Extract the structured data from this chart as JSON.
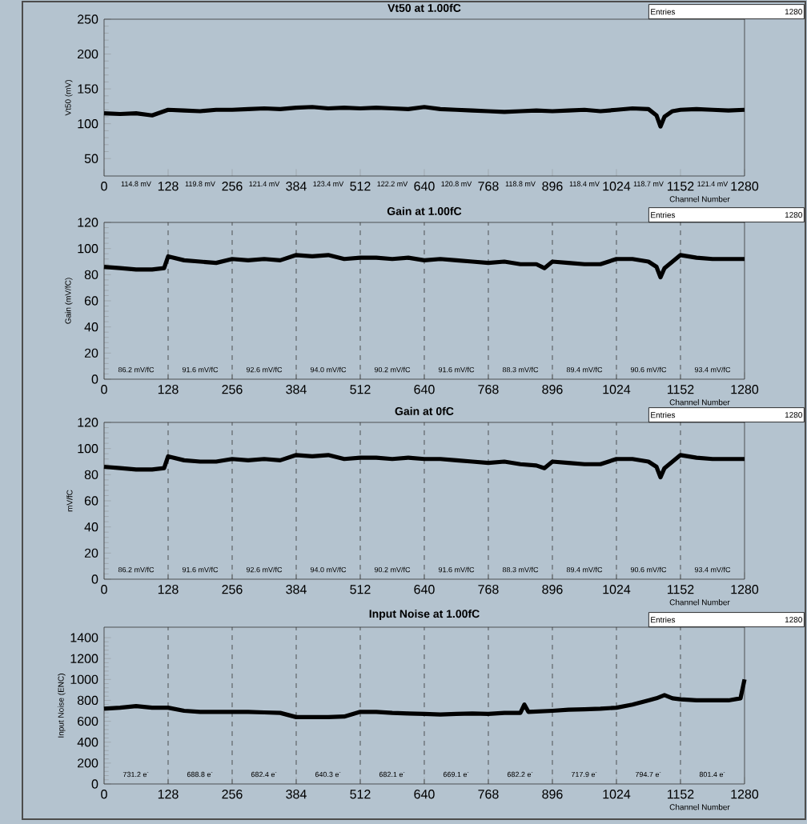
{
  "chart_data": [
    {
      "type": "line",
      "title": "Vt50 at 1.00fC",
      "xlabel": "Channel Number",
      "ylabel": "Vt50 (mV)",
      "color": "#000000",
      "marker": "none",
      "line_style": "solid",
      "xlim": [
        0,
        1280
      ],
      "xticks": [
        0,
        128,
        256,
        384,
        512,
        640,
        768,
        896,
        1024,
        1152,
        1280
      ],
      "ylim": [
        25,
        250
      ],
      "yticks": [
        50,
        100,
        150,
        200,
        250
      ],
      "x": [
        0,
        32,
        64,
        96,
        128,
        160,
        192,
        224,
        256,
        288,
        320,
        352,
        384,
        416,
        448,
        480,
        512,
        544,
        576,
        608,
        640,
        672,
        704,
        736,
        768,
        800,
        832,
        864,
        896,
        928,
        960,
        992,
        1024,
        1056,
        1088,
        1104,
        1112,
        1120,
        1136,
        1152,
        1184,
        1216,
        1248,
        1280
      ],
      "values": [
        115,
        114,
        115,
        112,
        120,
        119,
        118,
        120,
        120,
        121,
        122,
        121,
        123,
        124,
        122,
        123,
        122,
        123,
        122,
        121,
        124,
        121,
        120,
        119,
        118,
        117,
        118,
        119,
        118,
        119,
        120,
        118,
        120,
        122,
        121,
        112,
        96,
        110,
        118,
        120,
        121,
        120,
        119,
        120
      ],
      "annotations": [
        "Entries",
        "1280",
        "114.8 mV",
        "119.8 mV",
        "121.4 mV",
        "123.4 mV",
        "122.2 mV",
        "120.8 mV",
        "118.8 mV",
        "118.4 mV",
        "118.7 mV",
        "121.4 mV"
      ]
    },
    {
      "type": "line",
      "title": "Gain at 1.00fC",
      "xlabel": "Channel Number",
      "ylabel": "Gain (mV/fC)",
      "color": "#000000",
      "marker": "none",
      "line_style": "solid",
      "xlim": [
        0,
        1280
      ],
      "xticks": [
        0,
        128,
        256,
        384,
        512,
        640,
        768,
        896,
        1024,
        1152,
        1280
      ],
      "ylim": [
        0,
        120
      ],
      "yticks": [
        0,
        20,
        40,
        60,
        80,
        100,
        120
      ],
      "x": [
        0,
        32,
        64,
        96,
        120,
        128,
        160,
        192,
        224,
        256,
        288,
        320,
        352,
        384,
        416,
        448,
        480,
        512,
        544,
        576,
        608,
        640,
        672,
        704,
        736,
        768,
        800,
        832,
        864,
        880,
        896,
        928,
        960,
        992,
        1024,
        1056,
        1088,
        1104,
        1112,
        1120,
        1136,
        1152,
        1184,
        1216,
        1248,
        1280
      ],
      "values": [
        86,
        85,
        84,
        84,
        85,
        94,
        91,
        90,
        89,
        92,
        91,
        92,
        91,
        95,
        94,
        95,
        92,
        93,
        93,
        92,
        93,
        91,
        92,
        91,
        90,
        89,
        90,
        88,
        88,
        85,
        90,
        89,
        88,
        88,
        92,
        92,
        90,
        86,
        78,
        85,
        90,
        95,
        93,
        92,
        92,
        92
      ],
      "ref_lines": [
        {
          "axis": "x",
          "value": 128,
          "line_style": "dashed"
        },
        {
          "axis": "x",
          "value": 256,
          "line_style": "dashed"
        },
        {
          "axis": "x",
          "value": 384,
          "line_style": "dashed"
        },
        {
          "axis": "x",
          "value": 512,
          "line_style": "dashed"
        },
        {
          "axis": "x",
          "value": 640,
          "line_style": "dashed"
        },
        {
          "axis": "x",
          "value": 768,
          "line_style": "dashed"
        },
        {
          "axis": "x",
          "value": 896,
          "line_style": "dashed"
        },
        {
          "axis": "x",
          "value": 1024,
          "line_style": "dashed"
        },
        {
          "axis": "x",
          "value": 1152,
          "line_style": "dashed"
        }
      ],
      "annotations": [
        "Entries",
        "1280",
        "86.2 mV/fC",
        "91.6 mV/fC",
        "92.6 mV/fC",
        "94.0 mV/fC",
        "90.2 mV/fC",
        "91.6 mV/fC",
        "88.3 mV/fC",
        "89.4 mV/fC",
        "90.6 mV/fC",
        "93.4 mV/fC"
      ]
    },
    {
      "type": "line",
      "title": "Gain at 0fC",
      "xlabel": "Channel Number",
      "ylabel": "mV/fC",
      "color": "#000000",
      "marker": "none",
      "line_style": "solid",
      "xlim": [
        0,
        1280
      ],
      "xticks": [
        0,
        128,
        256,
        384,
        512,
        640,
        768,
        896,
        1024,
        1152,
        1280
      ],
      "ylim": [
        0,
        120
      ],
      "yticks": [
        0,
        20,
        40,
        60,
        80,
        100,
        120
      ],
      "x": [
        0,
        32,
        64,
        96,
        120,
        128,
        160,
        192,
        224,
        256,
        288,
        320,
        352,
        384,
        416,
        448,
        480,
        512,
        544,
        576,
        608,
        640,
        672,
        704,
        736,
        768,
        800,
        832,
        864,
        880,
        896,
        928,
        960,
        992,
        1024,
        1056,
        1088,
        1104,
        1112,
        1120,
        1136,
        1152,
        1184,
        1216,
        1248,
        1280
      ],
      "values": [
        86,
        85,
        84,
        84,
        85,
        94,
        91,
        90,
        90,
        92,
        91,
        92,
        91,
        95,
        94,
        95,
        92,
        93,
        93,
        92,
        93,
        92,
        92,
        91,
        90,
        89,
        90,
        88,
        87,
        85,
        90,
        89,
        88,
        88,
        92,
        92,
        90,
        86,
        78,
        85,
        90,
        95,
        93,
        92,
        92,
        92
      ],
      "ref_lines": [
        {
          "axis": "x",
          "value": 128,
          "line_style": "dashed"
        },
        {
          "axis": "x",
          "value": 256,
          "line_style": "dashed"
        },
        {
          "axis": "x",
          "value": 384,
          "line_style": "dashed"
        },
        {
          "axis": "x",
          "value": 512,
          "line_style": "dashed"
        },
        {
          "axis": "x",
          "value": 640,
          "line_style": "dashed"
        },
        {
          "axis": "x",
          "value": 768,
          "line_style": "dashed"
        },
        {
          "axis": "x",
          "value": 896,
          "line_style": "dashed"
        },
        {
          "axis": "x",
          "value": 1024,
          "line_style": "dashed"
        },
        {
          "axis": "x",
          "value": 1152,
          "line_style": "dashed"
        }
      ],
      "annotations": [
        "Entries",
        "1280",
        "86.2 mV/fC",
        "91.6 mV/fC",
        "92.6 mV/fC",
        "94.0 mV/fC",
        "90.2 mV/fC",
        "91.6 mV/fC",
        "88.3 mV/fC",
        "89.4 mV/fC",
        "90.6 mV/fC",
        "93.4 mV/fC"
      ]
    },
    {
      "type": "line",
      "title": "Input Noise at 1.00fC",
      "xlabel": "Channel Number",
      "ylabel": "Input Noise (ENC)",
      "color": "#000000",
      "marker": "none",
      "line_style": "solid",
      "xlim": [
        0,
        1280
      ],
      "xticks": [
        0,
        128,
        256,
        384,
        512,
        640,
        768,
        896,
        1024,
        1152,
        1280
      ],
      "ylim": [
        0,
        1500
      ],
      "yticks": [
        0,
        200,
        400,
        600,
        800,
        1000,
        1200,
        1400
      ],
      "x": [
        0,
        32,
        64,
        96,
        128,
        160,
        192,
        224,
        256,
        288,
        320,
        352,
        384,
        416,
        448,
        480,
        512,
        544,
        576,
        608,
        640,
        672,
        704,
        736,
        768,
        800,
        832,
        840,
        848,
        896,
        928,
        960,
        992,
        1024,
        1056,
        1088,
        1104,
        1120,
        1136,
        1152,
        1184,
        1216,
        1248,
        1272,
        1280
      ],
      "values": [
        720,
        730,
        745,
        730,
        730,
        700,
        690,
        690,
        690,
        690,
        685,
        680,
        640,
        640,
        640,
        645,
        690,
        690,
        680,
        675,
        670,
        665,
        670,
        675,
        670,
        680,
        680,
        760,
        690,
        700,
        710,
        715,
        720,
        730,
        760,
        800,
        820,
        850,
        820,
        810,
        800,
        800,
        800,
        820,
        1000
      ],
      "ref_lines": [
        {
          "axis": "x",
          "value": 128,
          "line_style": "dashed"
        },
        {
          "axis": "x",
          "value": 256,
          "line_style": "dashed"
        },
        {
          "axis": "x",
          "value": 384,
          "line_style": "dashed"
        },
        {
          "axis": "x",
          "value": 512,
          "line_style": "dashed"
        },
        {
          "axis": "x",
          "value": 640,
          "line_style": "dashed"
        },
        {
          "axis": "x",
          "value": 768,
          "line_style": "dashed"
        },
        {
          "axis": "x",
          "value": 896,
          "line_style": "dashed"
        },
        {
          "axis": "x",
          "value": 1024,
          "line_style": "dashed"
        },
        {
          "axis": "x",
          "value": 1152,
          "line_style": "dashed"
        }
      ],
      "annotations": [
        "Entries",
        "1280",
        "731.2 e$^{-}$",
        "688.8 e$^{-}$",
        "682.4 e$^{-}$",
        "640.3 e$^{-}$",
        "682.1 e$^{-}$",
        "669.1 e$^{-}$",
        "682.2 e$^{-}$",
        "717.9 e$^{-}$",
        "794.7 e$^{-}$",
        "801.4 e$^{-}$"
      ]
    }
  ]
}
